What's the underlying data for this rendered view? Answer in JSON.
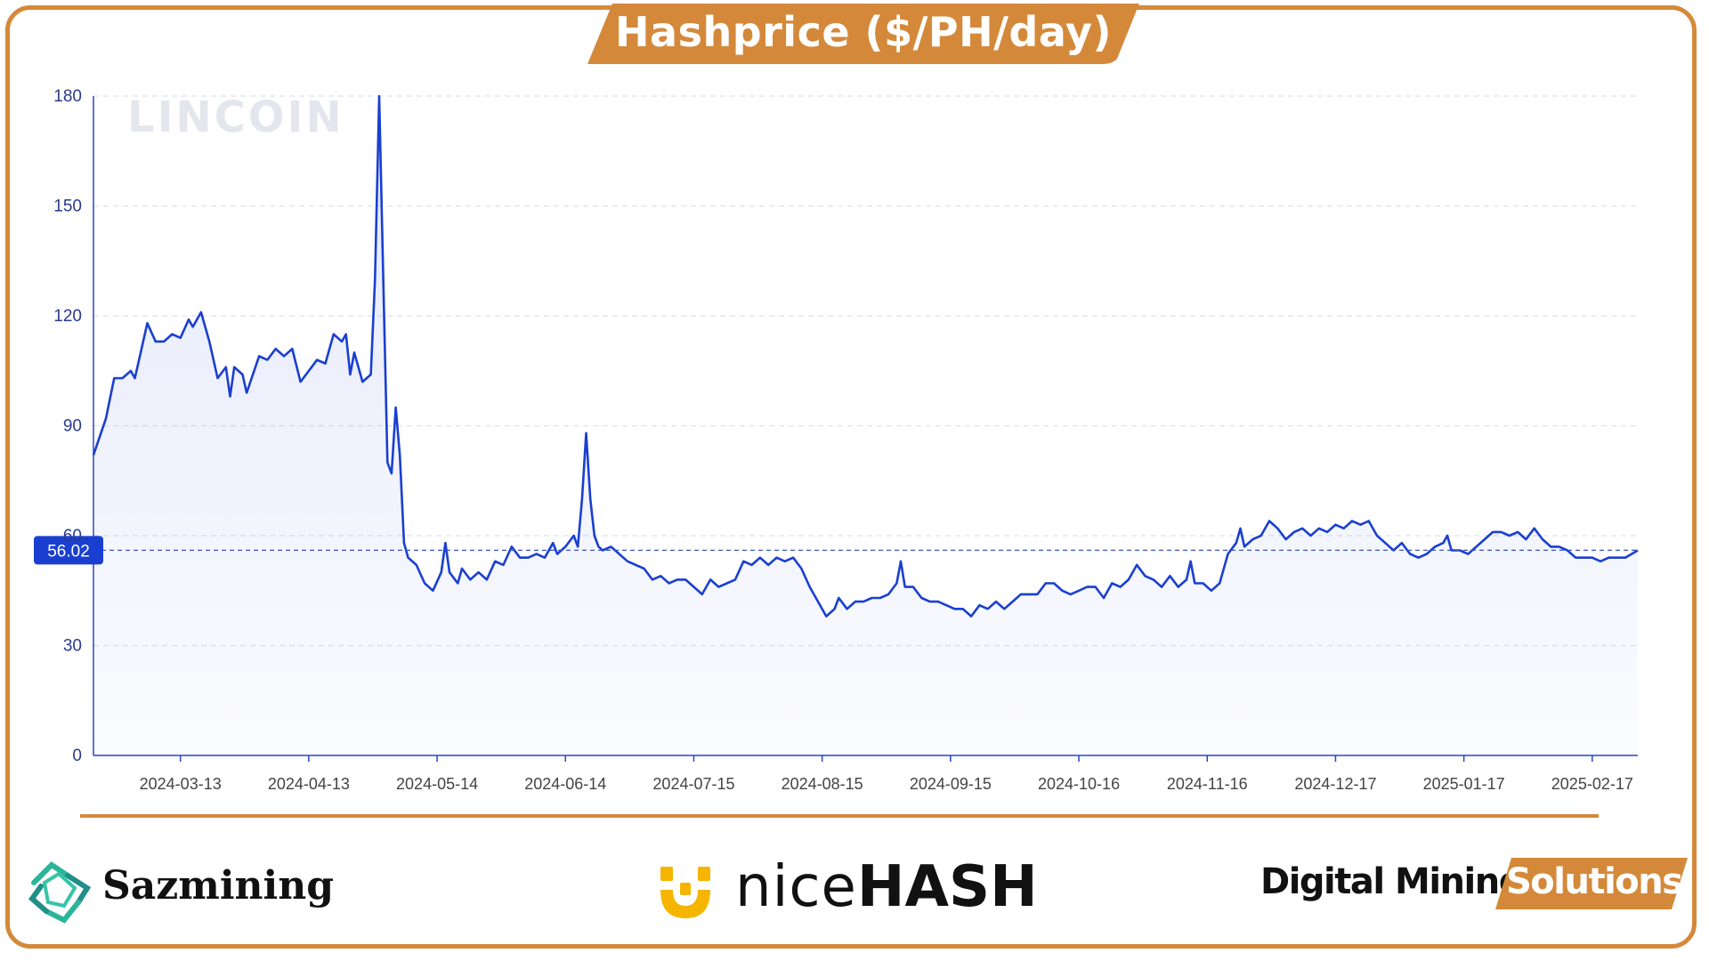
{
  "header": {
    "title": "Hashprice ($/PH/day)"
  },
  "watermark": "LINCOIN",
  "footer": {
    "logos": [
      {
        "name": "Sazmining",
        "icon": "sazmining-logo-icon"
      },
      {
        "name_light": "nice",
        "name_bold": "HASH",
        "icon": "nicehash-logo-icon"
      },
      {
        "name": "Digital Mining",
        "badge": "Solutions"
      }
    ]
  },
  "colors": {
    "accent": "#d4893a",
    "line": "#1a3fd0",
    "badge": "#1a3fd0"
  },
  "chart_data": {
    "type": "area",
    "title": "Hashprice ($/PH/day)",
    "xlabel": "",
    "ylabel": "",
    "ylim": [
      0,
      180
    ],
    "yticks": [
      0,
      30,
      60,
      90,
      120,
      150,
      180
    ],
    "xlim": [
      "2024-02-21",
      "2025-02-28"
    ],
    "xticks": [
      "2024-03-13",
      "2024-04-13",
      "2024-05-14",
      "2024-06-14",
      "2024-07-15",
      "2024-08-15",
      "2024-09-15",
      "2024-10-16",
      "2024-11-16",
      "2024-12-17",
      "2025-01-17",
      "2025-02-17"
    ],
    "grid": true,
    "current_value": 56.02,
    "reference_line": 56.02,
    "series": [
      {
        "points": [
          [
            "2024-02-21",
            82
          ],
          [
            "2024-02-24",
            92
          ],
          [
            "2024-02-26",
            103
          ],
          [
            "2024-02-28",
            103
          ],
          [
            "2024-03-01",
            105
          ],
          [
            "2024-03-02",
            103
          ],
          [
            "2024-03-03",
            108
          ],
          [
            "2024-03-05",
            118
          ],
          [
            "2024-03-07",
            113
          ],
          [
            "2024-03-09",
            113
          ],
          [
            "2024-03-11",
            115
          ],
          [
            "2024-03-13",
            114
          ],
          [
            "2024-03-15",
            119
          ],
          [
            "2024-03-16",
            117
          ],
          [
            "2024-03-18",
            121
          ],
          [
            "2024-03-20",
            113
          ],
          [
            "2024-03-22",
            103
          ],
          [
            "2024-03-24",
            106
          ],
          [
            "2024-03-25",
            98
          ],
          [
            "2024-03-26",
            106
          ],
          [
            "2024-03-28",
            104
          ],
          [
            "2024-03-29",
            99
          ],
          [
            "2024-04-01",
            109
          ],
          [
            "2024-04-03",
            108
          ],
          [
            "2024-04-05",
            111
          ],
          [
            "2024-04-07",
            109
          ],
          [
            "2024-04-09",
            111
          ],
          [
            "2024-04-11",
            102
          ],
          [
            "2024-04-13",
            105
          ],
          [
            "2024-04-15",
            108
          ],
          [
            "2024-04-17",
            107
          ],
          [
            "2024-04-19",
            115
          ],
          [
            "2024-04-21",
            113
          ],
          [
            "2024-04-22",
            115
          ],
          [
            "2024-04-23",
            104
          ],
          [
            "2024-04-24",
            110
          ],
          [
            "2024-04-26",
            102
          ],
          [
            "2024-04-28",
            104
          ],
          [
            "2024-04-29",
            130
          ],
          [
            "2024-04-30",
            180
          ],
          [
            "2024-05-01",
            130
          ],
          [
            "2024-05-02",
            80
          ],
          [
            "2024-05-03",
            77
          ],
          [
            "2024-05-04",
            95
          ],
          [
            "2024-05-05",
            82
          ],
          [
            "2024-05-06",
            58
          ],
          [
            "2024-05-07",
            54
          ],
          [
            "2024-05-09",
            52
          ],
          [
            "2024-05-11",
            47
          ],
          [
            "2024-05-13",
            45
          ],
          [
            "2024-05-15",
            50
          ],
          [
            "2024-05-16",
            58
          ],
          [
            "2024-05-17",
            50
          ],
          [
            "2024-05-19",
            47
          ],
          [
            "2024-05-20",
            51
          ],
          [
            "2024-05-22",
            48
          ],
          [
            "2024-05-24",
            50
          ],
          [
            "2024-05-26",
            48
          ],
          [
            "2024-05-28",
            53
          ],
          [
            "2024-05-30",
            52
          ],
          [
            "2024-06-01",
            57
          ],
          [
            "2024-06-03",
            54
          ],
          [
            "2024-06-05",
            54
          ],
          [
            "2024-06-07",
            55
          ],
          [
            "2024-06-09",
            54
          ],
          [
            "2024-06-11",
            58
          ],
          [
            "2024-06-12",
            55
          ],
          [
            "2024-06-14",
            57
          ],
          [
            "2024-06-16",
            60
          ],
          [
            "2024-06-17",
            57
          ],
          [
            "2024-06-18",
            70
          ],
          [
            "2024-06-19",
            88
          ],
          [
            "2024-06-20",
            70
          ],
          [
            "2024-06-21",
            60
          ],
          [
            "2024-06-22",
            57
          ],
          [
            "2024-06-23",
            56
          ],
          [
            "2024-06-25",
            57
          ],
          [
            "2024-06-27",
            55
          ],
          [
            "2024-06-29",
            53
          ],
          [
            "2024-07-01",
            52
          ],
          [
            "2024-07-03",
            51
          ],
          [
            "2024-07-05",
            48
          ],
          [
            "2024-07-07",
            49
          ],
          [
            "2024-07-09",
            47
          ],
          [
            "2024-07-11",
            48
          ],
          [
            "2024-07-13",
            48
          ],
          [
            "2024-07-15",
            46
          ],
          [
            "2024-07-17",
            44
          ],
          [
            "2024-07-19",
            48
          ],
          [
            "2024-07-21",
            46
          ],
          [
            "2024-07-23",
            47
          ],
          [
            "2024-07-25",
            48
          ],
          [
            "2024-07-27",
            53
          ],
          [
            "2024-07-29",
            52
          ],
          [
            "2024-07-31",
            54
          ],
          [
            "2024-08-02",
            52
          ],
          [
            "2024-08-04",
            54
          ],
          [
            "2024-08-06",
            53
          ],
          [
            "2024-08-08",
            54
          ],
          [
            "2024-08-10",
            51
          ],
          [
            "2024-08-12",
            46
          ],
          [
            "2024-08-14",
            42
          ],
          [
            "2024-08-16",
            38
          ],
          [
            "2024-08-18",
            40
          ],
          [
            "2024-08-19",
            43
          ],
          [
            "2024-08-21",
            40
          ],
          [
            "2024-08-23",
            42
          ],
          [
            "2024-08-25",
            42
          ],
          [
            "2024-08-27",
            43
          ],
          [
            "2024-08-29",
            43
          ],
          [
            "2024-08-31",
            44
          ],
          [
            "2024-09-02",
            47
          ],
          [
            "2024-09-03",
            53
          ],
          [
            "2024-09-04",
            46
          ],
          [
            "2024-09-06",
            46
          ],
          [
            "2024-09-08",
            43
          ],
          [
            "2024-09-10",
            42
          ],
          [
            "2024-09-12",
            42
          ],
          [
            "2024-09-14",
            41
          ],
          [
            "2024-09-16",
            40
          ],
          [
            "2024-09-18",
            40
          ],
          [
            "2024-09-20",
            38
          ],
          [
            "2024-09-22",
            41
          ],
          [
            "2024-09-24",
            40
          ],
          [
            "2024-09-26",
            42
          ],
          [
            "2024-09-28",
            40
          ],
          [
            "2024-09-30",
            42
          ],
          [
            "2024-10-02",
            44
          ],
          [
            "2024-10-04",
            44
          ],
          [
            "2024-10-06",
            44
          ],
          [
            "2024-10-08",
            47
          ],
          [
            "2024-10-10",
            47
          ],
          [
            "2024-10-12",
            45
          ],
          [
            "2024-10-14",
            44
          ],
          [
            "2024-10-16",
            45
          ],
          [
            "2024-10-18",
            46
          ],
          [
            "2024-10-20",
            46
          ],
          [
            "2024-10-22",
            43
          ],
          [
            "2024-10-24",
            47
          ],
          [
            "2024-10-26",
            46
          ],
          [
            "2024-10-28",
            48
          ],
          [
            "2024-10-30",
            52
          ],
          [
            "2024-11-01",
            49
          ],
          [
            "2024-11-03",
            48
          ],
          [
            "2024-11-05",
            46
          ],
          [
            "2024-11-07",
            49
          ],
          [
            "2024-11-09",
            46
          ],
          [
            "2024-11-11",
            48
          ],
          [
            "2024-11-12",
            53
          ],
          [
            "2024-11-13",
            47
          ],
          [
            "2024-11-15",
            47
          ],
          [
            "2024-11-17",
            45
          ],
          [
            "2024-11-19",
            47
          ],
          [
            "2024-11-21",
            55
          ],
          [
            "2024-11-23",
            58
          ],
          [
            "2024-11-24",
            62
          ],
          [
            "2024-11-25",
            57
          ],
          [
            "2024-11-27",
            59
          ],
          [
            "2024-11-29",
            60
          ],
          [
            "2024-12-01",
            64
          ],
          [
            "2024-12-03",
            62
          ],
          [
            "2024-12-05",
            59
          ],
          [
            "2024-12-07",
            61
          ],
          [
            "2024-12-09",
            62
          ],
          [
            "2024-12-11",
            60
          ],
          [
            "2024-12-13",
            62
          ],
          [
            "2024-12-15",
            61
          ],
          [
            "2024-12-17",
            63
          ],
          [
            "2024-12-19",
            62
          ],
          [
            "2024-12-21",
            64
          ],
          [
            "2024-12-23",
            63
          ],
          [
            "2024-12-25",
            64
          ],
          [
            "2024-12-27",
            60
          ],
          [
            "2024-12-29",
            58
          ],
          [
            "2024-12-31",
            56
          ],
          [
            "2025-01-02",
            58
          ],
          [
            "2025-01-04",
            55
          ],
          [
            "2025-01-06",
            54
          ],
          [
            "2025-01-08",
            55
          ],
          [
            "2025-01-10",
            57
          ],
          [
            "2025-01-12",
            58
          ],
          [
            "2025-01-13",
            60
          ],
          [
            "2025-01-14",
            56
          ],
          [
            "2025-01-16",
            56
          ],
          [
            "2025-01-18",
            55
          ],
          [
            "2025-01-20",
            57
          ],
          [
            "2025-01-22",
            59
          ],
          [
            "2025-01-24",
            61
          ],
          [
            "2025-01-26",
            61
          ],
          [
            "2025-01-28",
            60
          ],
          [
            "2025-01-30",
            61
          ],
          [
            "2025-02-01",
            59
          ],
          [
            "2025-02-03",
            62
          ],
          [
            "2025-02-05",
            59
          ],
          [
            "2025-02-07",
            57
          ],
          [
            "2025-02-09",
            57
          ],
          [
            "2025-02-11",
            56
          ],
          [
            "2025-02-13",
            54
          ],
          [
            "2025-02-15",
            54
          ],
          [
            "2025-02-17",
            54
          ],
          [
            "2025-02-19",
            53
          ],
          [
            "2025-02-21",
            54
          ],
          [
            "2025-02-23",
            54
          ],
          [
            "2025-02-25",
            54
          ],
          [
            "2025-02-28",
            56
          ]
        ]
      }
    ]
  }
}
